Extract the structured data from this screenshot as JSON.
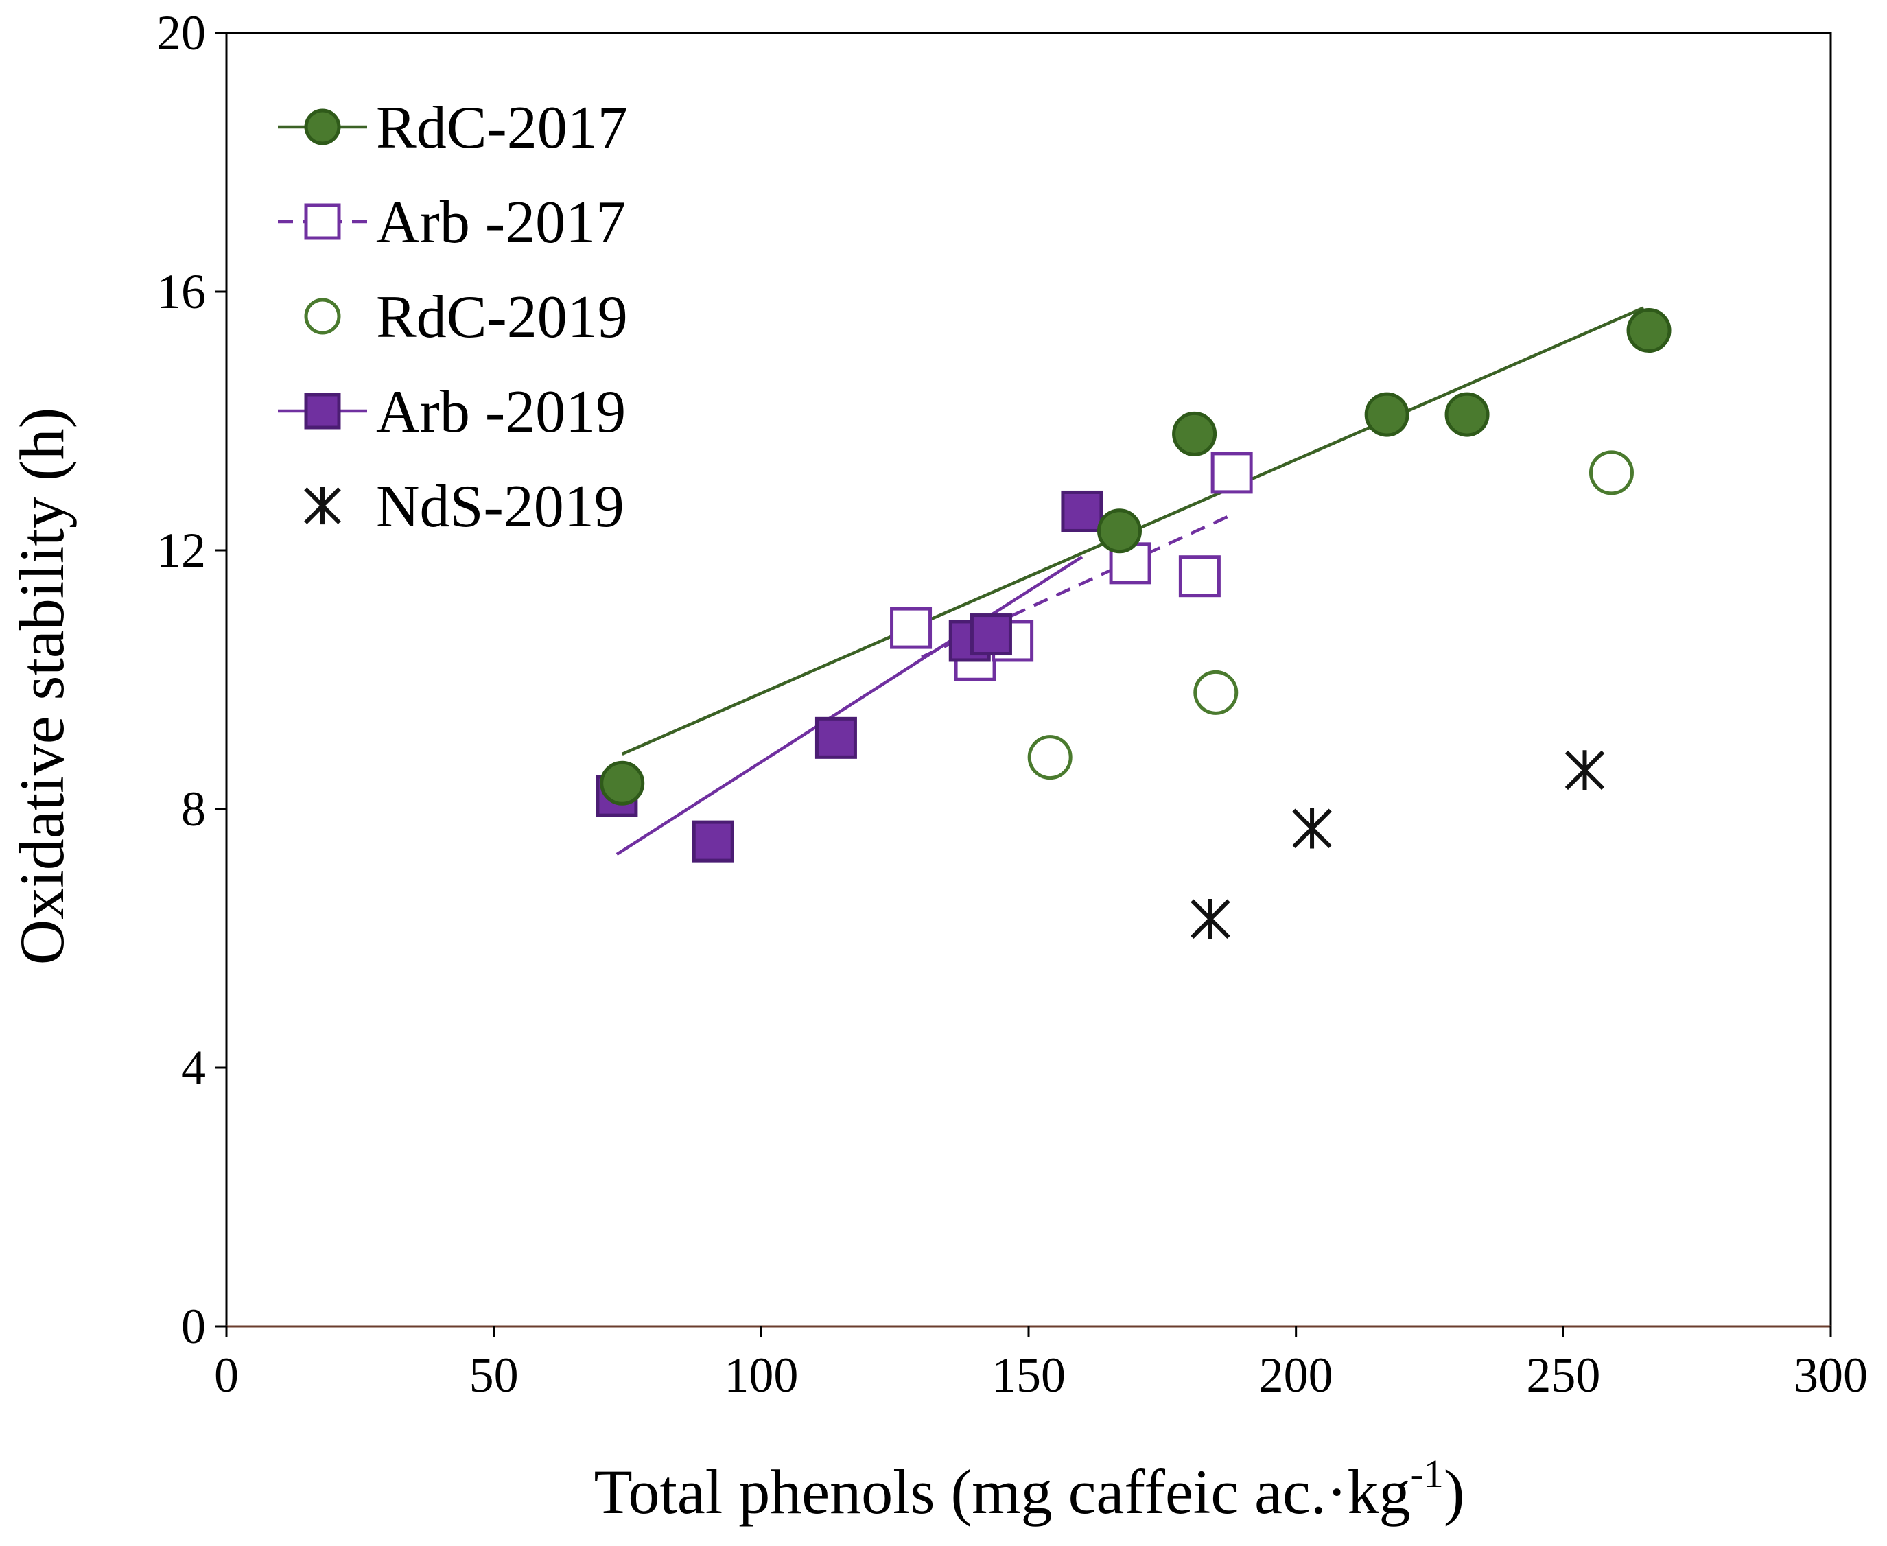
{
  "chart_data": {
    "type": "scatter",
    "xlabel": {
      "main": "Total phenols (mg caffeic ac.·kg",
      "superscript": "-1",
      "close": ")"
    },
    "ylabel": "Oxidative stability (h)",
    "xlim": [
      0,
      300
    ],
    "ylim": [
      0,
      20
    ],
    "x_ticks": [
      0,
      50,
      100,
      150,
      200,
      250,
      300
    ],
    "y_ticks": [
      0,
      4,
      8,
      12,
      16,
      20
    ],
    "grid": false,
    "legend_position": "top-left",
    "colors": {
      "rdc": "#4a7a2e",
      "rdc_edge": "#2f5a1a",
      "rdc_line": "#3b6225",
      "arb": "#7030a0",
      "arb_edge": "#4b1d73",
      "nds": "#111111",
      "axis": "#000000",
      "x_axis": "#6b3e2e"
    },
    "series": [
      {
        "name": "RdC-2017",
        "marker": "circle-filled",
        "x": [
          74,
          167,
          181,
          217,
          232,
          266
        ],
        "y": [
          8.4,
          12.3,
          13.8,
          14.1,
          14.1,
          15.4
        ],
        "trendline": {
          "style": "solid",
          "x": [
            74,
            265
          ],
          "y": [
            8.85,
            15.75
          ]
        }
      },
      {
        "name": "Arb -2017",
        "marker": "square-open",
        "x": [
          128,
          140,
          147,
          169,
          182,
          188
        ],
        "y": [
          10.8,
          10.3,
          10.6,
          11.8,
          11.6,
          13.2
        ],
        "trendline": {
          "style": "dashed",
          "x": [
            130,
            188
          ],
          "y": [
            10.35,
            12.55
          ]
        }
      },
      {
        "name": "RdC-2019",
        "marker": "circle-open",
        "x": [
          154,
          185,
          259
        ],
        "y": [
          8.8,
          9.8,
          13.2
        ],
        "trendline": null
      },
      {
        "name": "Arb -2019",
        "marker": "square-filled",
        "x": [
          73,
          91,
          114,
          139,
          143,
          160
        ],
        "y": [
          8.2,
          7.5,
          9.1,
          10.6,
          10.7,
          12.6
        ],
        "trendline": {
          "style": "solid",
          "x": [
            73,
            160
          ],
          "y": [
            7.3,
            11.9
          ]
        }
      },
      {
        "name": "NdS-2019",
        "marker": "asterisk",
        "x": [
          184,
          203,
          254
        ],
        "y": [
          6.3,
          7.7,
          8.6
        ],
        "trendline": null
      }
    ]
  }
}
